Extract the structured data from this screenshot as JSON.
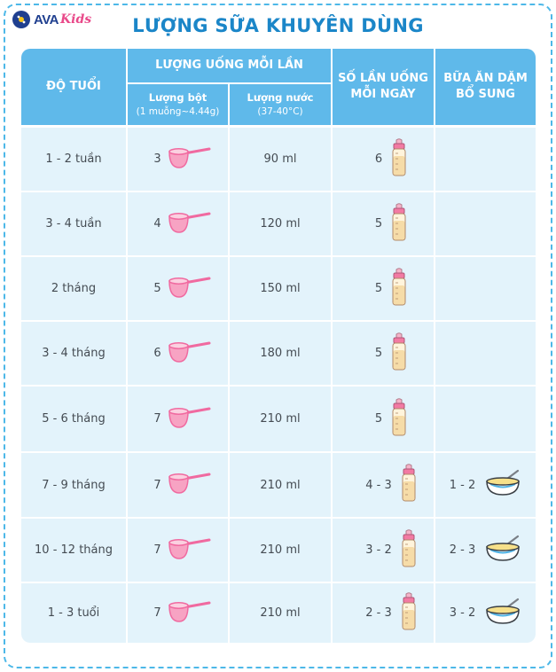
{
  "brand": {
    "name": "AVA",
    "sub": "Kids"
  },
  "title": "LƯỢNG SỮA KHUYÊN DÙNG",
  "headers": {
    "age": "ĐỘ TUỔI",
    "per_feed": "LƯỢNG UỐNG MỖI LẦN",
    "powder": "Lượng bột",
    "powder_note": "(1 muỗng~4.44g)",
    "water": "Lượng nước",
    "water_note": "(37-40°C)",
    "times_line1": "SỐ LẦN UỐNG",
    "times_line2": "MỖI NGÀY",
    "solid_line1": "BỮA ĂN DẶM",
    "solid_line2": "BỔ SUNG"
  },
  "rows": [
    {
      "age": "1 - 2 tuần",
      "scoops": "3",
      "water": "90 ml",
      "times": "6",
      "solid": ""
    },
    {
      "age": "3 - 4 tuần",
      "scoops": "4",
      "water": "120 ml",
      "times": "5",
      "solid": ""
    },
    {
      "age": "2 tháng",
      "scoops": "5",
      "water": "150 ml",
      "times": "5",
      "solid": ""
    },
    {
      "age": "3 - 4 tháng",
      "scoops": "6",
      "water": "180 ml",
      "times": "5",
      "solid": ""
    },
    {
      "age": "5 - 6 tháng",
      "scoops": "7",
      "water": "210 ml",
      "times": "5",
      "solid": ""
    },
    {
      "age": "7 - 9 tháng",
      "scoops": "7",
      "water": "210 ml",
      "times": "4 - 3",
      "solid": "1 - 2"
    },
    {
      "age": "10 - 12 tháng",
      "scoops": "7",
      "water": "210 ml",
      "times": "3 - 2",
      "solid": "2 - 3"
    },
    {
      "age": "1 - 3 tuổi",
      "scoops": "7",
      "water": "210 ml",
      "times": "2 - 3",
      "solid": "3 - 2"
    }
  ],
  "icons": {
    "scoop": "scoop-icon",
    "bottle": "baby-bottle-icon",
    "bowl": "porridge-bowl-icon"
  },
  "colors": {
    "header": "#5fb9ea",
    "cell": "#e3f3fb",
    "title": "#1b86c8",
    "frame": "#4db8e8",
    "scoop": "#f06aa0"
  }
}
